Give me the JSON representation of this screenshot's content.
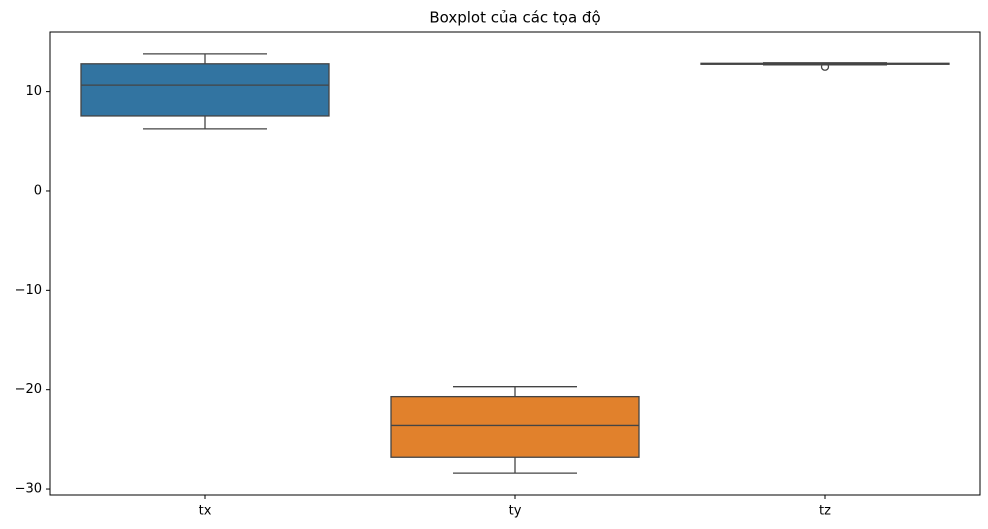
{
  "chart_data": {
    "type": "box",
    "title": "Boxplot của các tọa độ",
    "categories": [
      "tx",
      "ty",
      "tz"
    ],
    "colors": [
      "#3274a1",
      "#e1812c",
      "#3a923a"
    ],
    "boxes": [
      {
        "whislo": 6.25,
        "q1": 7.55,
        "med": 10.65,
        "q3": 12.8,
        "whishi": 13.8,
        "fliers": []
      },
      {
        "whislo": -28.4,
        "q1": -26.8,
        "med": -23.6,
        "q3": -20.7,
        "whishi": -19.7,
        "fliers": []
      },
      {
        "whislo": 12.7,
        "q1": 12.75,
        "med": 12.8,
        "q3": 12.85,
        "whishi": 12.9,
        "fliers": [
          12.5
        ]
      }
    ],
    "ylim": [
      -30.6,
      16
    ],
    "yticks": [
      {
        "value": -30,
        "label": "−30"
      },
      {
        "value": -20,
        "label": "−20"
      },
      {
        "value": -10,
        "label": "−10"
      },
      0,
      10
    ]
  }
}
